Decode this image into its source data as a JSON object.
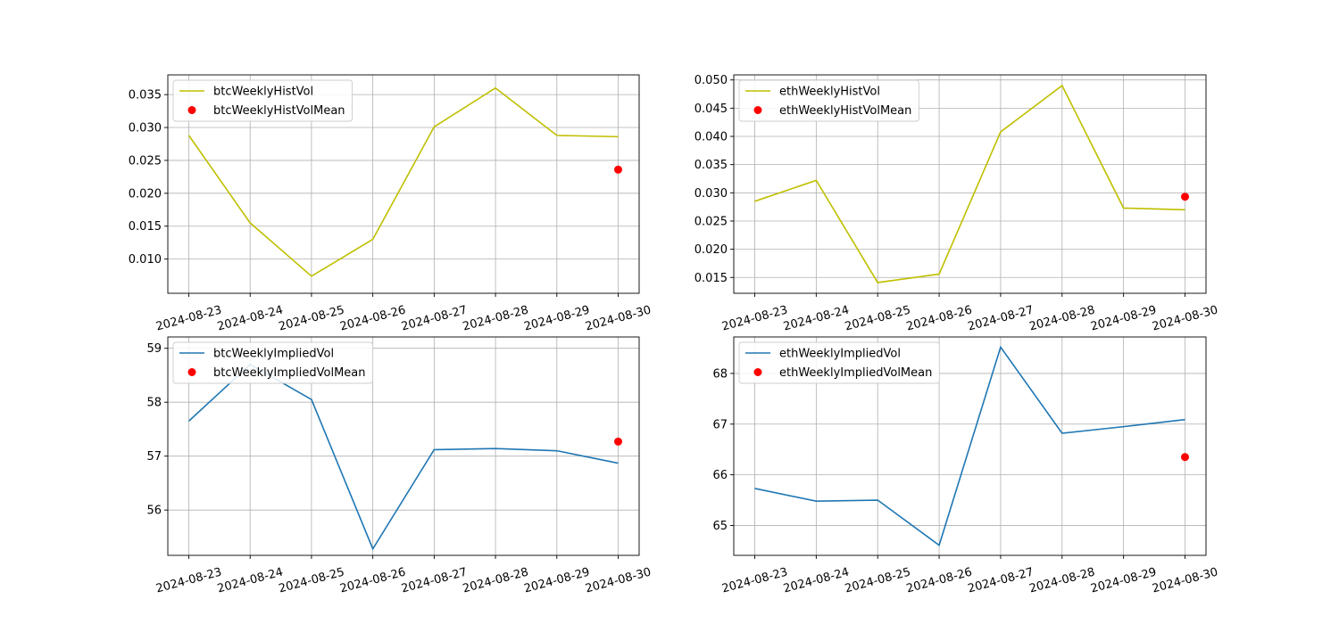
{
  "chart_data": [
    {
      "type": "line",
      "x": [
        "2024-08-23",
        "2024-08-24",
        "2024-08-25",
        "2024-08-26",
        "2024-08-27",
        "2024-08-28",
        "2024-08-29",
        "2024-08-30"
      ],
      "series": [
        {
          "name": "btcWeeklyHistVol",
          "kind": "line",
          "color": "#bfbf00",
          "values": [
            0.0288,
            0.0155,
            0.0074,
            0.013,
            0.0301,
            0.036,
            0.0288,
            0.0286
          ]
        },
        {
          "name": "btcWeeklyHistVolMean",
          "kind": "scatter",
          "color": "#ff0000",
          "points": [
            {
              "x": "2024-08-30",
              "y": 0.0236
            }
          ]
        }
      ],
      "ylim": [
        0.0048,
        0.038
      ],
      "yticks": [
        {
          "v": 0.01,
          "label": "0.010"
        },
        {
          "v": 0.015,
          "label": "0.015"
        },
        {
          "v": 0.02,
          "label": "0.020"
        },
        {
          "v": 0.025,
          "label": "0.025"
        },
        {
          "v": 0.03,
          "label": "0.030"
        },
        {
          "v": 0.035,
          "label": "0.035"
        }
      ],
      "grid": true,
      "legend": "upper-left"
    },
    {
      "type": "line",
      "x": [
        "2024-08-23",
        "2024-08-24",
        "2024-08-25",
        "2024-08-26",
        "2024-08-27",
        "2024-08-28",
        "2024-08-29",
        "2024-08-30"
      ],
      "series": [
        {
          "name": "ethWeeklyHistVol",
          "kind": "line",
          "color": "#bfbf00",
          "values": [
            0.0285,
            0.0322,
            0.0141,
            0.0156,
            0.0408,
            0.049,
            0.0273,
            0.027
          ]
        },
        {
          "name": "ethWeeklyHistVolMean",
          "kind": "scatter",
          "color": "#ff0000",
          "points": [
            {
              "x": "2024-08-30",
              "y": 0.0293
            }
          ]
        }
      ],
      "ylim": [
        0.0122,
        0.0509
      ],
      "yticks": [
        {
          "v": 0.015,
          "label": "0.015"
        },
        {
          "v": 0.02,
          "label": "0.020"
        },
        {
          "v": 0.025,
          "label": "0.025"
        },
        {
          "v": 0.03,
          "label": "0.030"
        },
        {
          "v": 0.035,
          "label": "0.035"
        },
        {
          "v": 0.04,
          "label": "0.040"
        },
        {
          "v": 0.045,
          "label": "0.045"
        },
        {
          "v": 0.05,
          "label": "0.050"
        }
      ],
      "grid": true,
      "legend": "upper-left"
    },
    {
      "type": "line",
      "x": [
        "2024-08-23",
        "2024-08-24",
        "2024-08-25",
        "2024-08-26",
        "2024-08-27",
        "2024-08-28",
        "2024-08-29",
        "2024-08-30"
      ],
      "series": [
        {
          "name": "btcWeeklyImpliedVol",
          "kind": "line",
          "color": "#1f77b4",
          "values": [
            57.65,
            58.7,
            58.05,
            55.28,
            57.12,
            57.14,
            57.1,
            56.87
          ]
        },
        {
          "name": "btcWeeklyImpliedVolMean",
          "kind": "scatter",
          "color": "#ff0000",
          "points": [
            {
              "x": "2024-08-30",
              "y": 57.27
            }
          ]
        }
      ],
      "ylim": [
        55.16,
        59.21
      ],
      "yticks": [
        {
          "v": 56,
          "label": "56"
        },
        {
          "v": 57,
          "label": "57"
        },
        {
          "v": 58,
          "label": "58"
        },
        {
          "v": 59,
          "label": "59"
        }
      ],
      "grid": true,
      "legend": "upper-left"
    },
    {
      "type": "line",
      "x": [
        "2024-08-23",
        "2024-08-24",
        "2024-08-25",
        "2024-08-26",
        "2024-08-27",
        "2024-08-28",
        "2024-08-29",
        "2024-08-30"
      ],
      "series": [
        {
          "name": "ethWeeklyImpliedVol",
          "kind": "line",
          "color": "#1f77b4",
          "values": [
            65.73,
            65.48,
            65.5,
            64.61,
            68.52,
            66.82,
            66.95,
            67.09
          ]
        },
        {
          "name": "ethWeeklyImpliedVolMean",
          "kind": "scatter",
          "color": "#ff0000",
          "points": [
            {
              "x": "2024-08-30",
              "y": 66.35
            }
          ]
        }
      ],
      "ylim": [
        64.41,
        68.72
      ],
      "yticks": [
        {
          "v": 65,
          "label": "65"
        },
        {
          "v": 66,
          "label": "66"
        },
        {
          "v": 67,
          "label": "67"
        },
        {
          "v": 68,
          "label": "68"
        }
      ],
      "grid": true,
      "legend": "upper-left"
    }
  ]
}
